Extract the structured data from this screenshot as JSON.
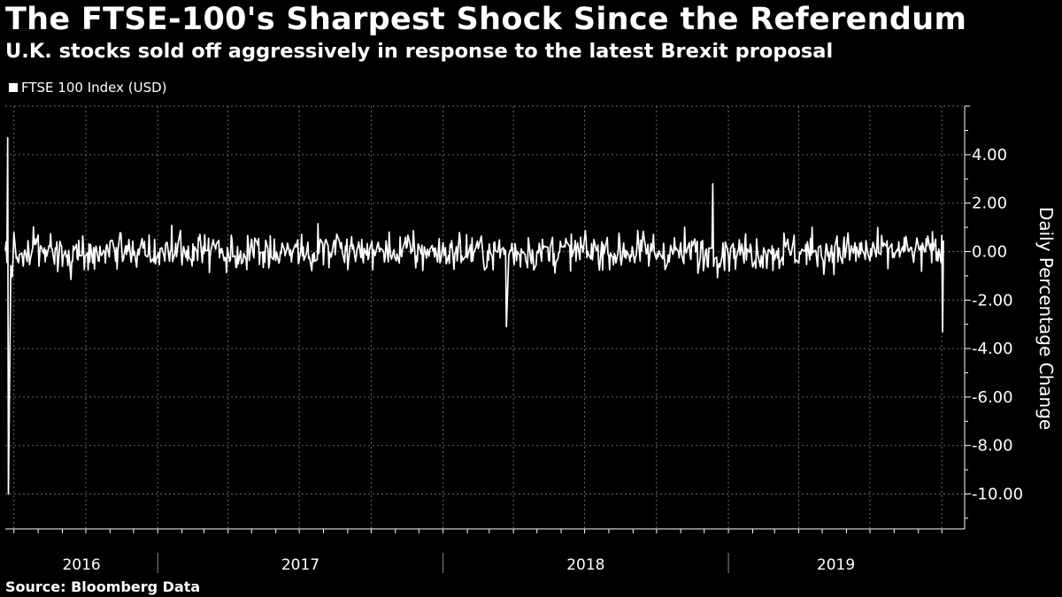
{
  "title": "The FTSE-100's Sharpest Shock Since the Referendum",
  "subtitle": "U.K. stocks sold off aggressively in response to the latest Brexit proposal",
  "source": "Source: Bloomberg Data",
  "colors": {
    "background": "#000000",
    "line": "#ffffff",
    "grid": "#6a6a6a"
  },
  "chart_data": {
    "type": "line",
    "series": [
      {
        "name": "FTSE 100 Index (USD)"
      }
    ],
    "ylabel": "Daily Percentage Change",
    "ylim": [
      -11.5,
      6.0
    ],
    "yticks": [
      4,
      2,
      0,
      -2,
      -4,
      -6,
      -8,
      -10
    ],
    "ytick_labels": [
      "4.00",
      "2.00",
      "0.00",
      "-2.00",
      "-4.00",
      "-6.00",
      "-8.00",
      "-10.00"
    ],
    "x_labels": [
      "2016",
      "2017",
      "2018",
      "2019"
    ],
    "x_range": [
      "2016-06-20",
      "2019-10-03"
    ],
    "x_year_boundaries": [
      "2017-01-01",
      "2018-01-01",
      "2019-01-01"
    ],
    "grid": true,
    "legend_position": "top-left",
    "y_axis_position": "right",
    "key_points": [
      {
        "date": "2016-06-23",
        "value": 4.7
      },
      {
        "date": "2016-06-24",
        "value": -10.0
      },
      {
        "date": "2018-03-23",
        "value": -3.1
      },
      {
        "date": "2018-12-12",
        "value": 2.8
      },
      {
        "date": "2019-10-02",
        "value": -3.3
      }
    ]
  }
}
